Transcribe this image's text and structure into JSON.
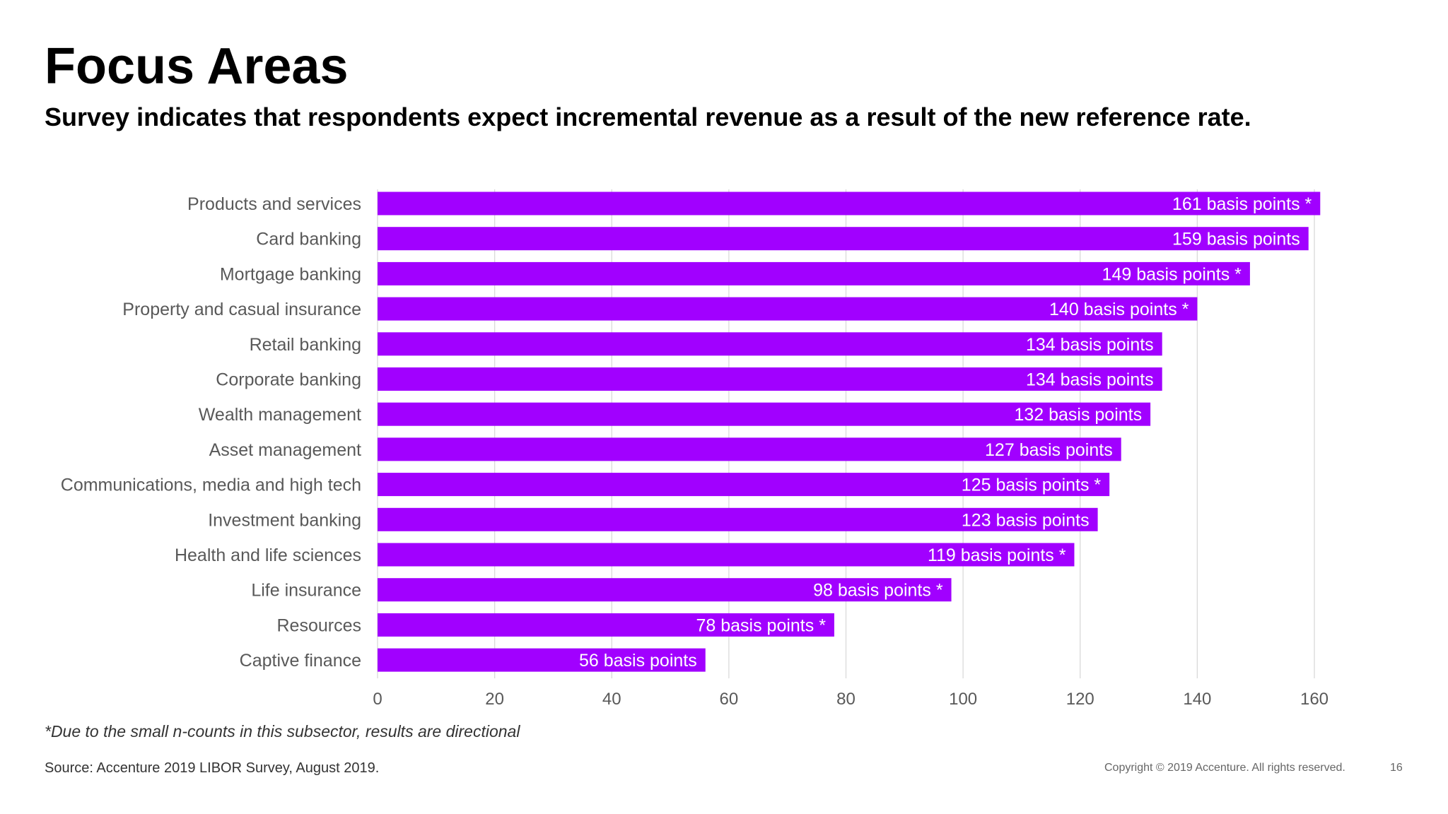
{
  "page": {
    "title": "Focus Areas",
    "subtitle": "Survey indicates that respondents expect incremental revenue as a result of the new reference rate.",
    "footnote": "*Due to the small n-counts in this subsector, results are directional",
    "source": "Source: Accenture 2019 LIBOR Survey,  August 2019.",
    "copyright": "Copyright © 2019 Accenture. All rights reserved.",
    "page_number": "16"
  },
  "colors": {
    "bar": "#a100ff",
    "bar_label": "#ffffff",
    "grid": "#d9d9d9",
    "axis_text": "#595959"
  },
  "chart_data": {
    "type": "bar",
    "orientation": "horizontal",
    "categories": [
      "Products and services",
      "Card banking",
      "Mortgage banking",
      "Property and casual insurance",
      "Retail banking",
      "Corporate banking",
      "Wealth management",
      "Asset management",
      "Communications, media and high tech",
      "Investment banking",
      "Health and life sciences",
      "Life insurance",
      "Resources",
      "Captive finance"
    ],
    "values": [
      161,
      159,
      149,
      140,
      134,
      134,
      132,
      127,
      125,
      123,
      119,
      98,
      78,
      56
    ],
    "data_labels": [
      "161 basis points *",
      "159 basis points",
      "149 basis points *",
      "140 basis points *",
      "134 basis points",
      "134 basis points",
      "132 basis points",
      "127 basis points",
      "125 basis points *",
      "123 basis points",
      "119 basis points *",
      "98 basis points *",
      "78 basis points *",
      "56 basis points"
    ],
    "xlim": [
      0,
      160
    ],
    "xticks": [
      0,
      20,
      40,
      60,
      80,
      100,
      120,
      140,
      160
    ],
    "grid": "vertical",
    "legend": "none"
  }
}
